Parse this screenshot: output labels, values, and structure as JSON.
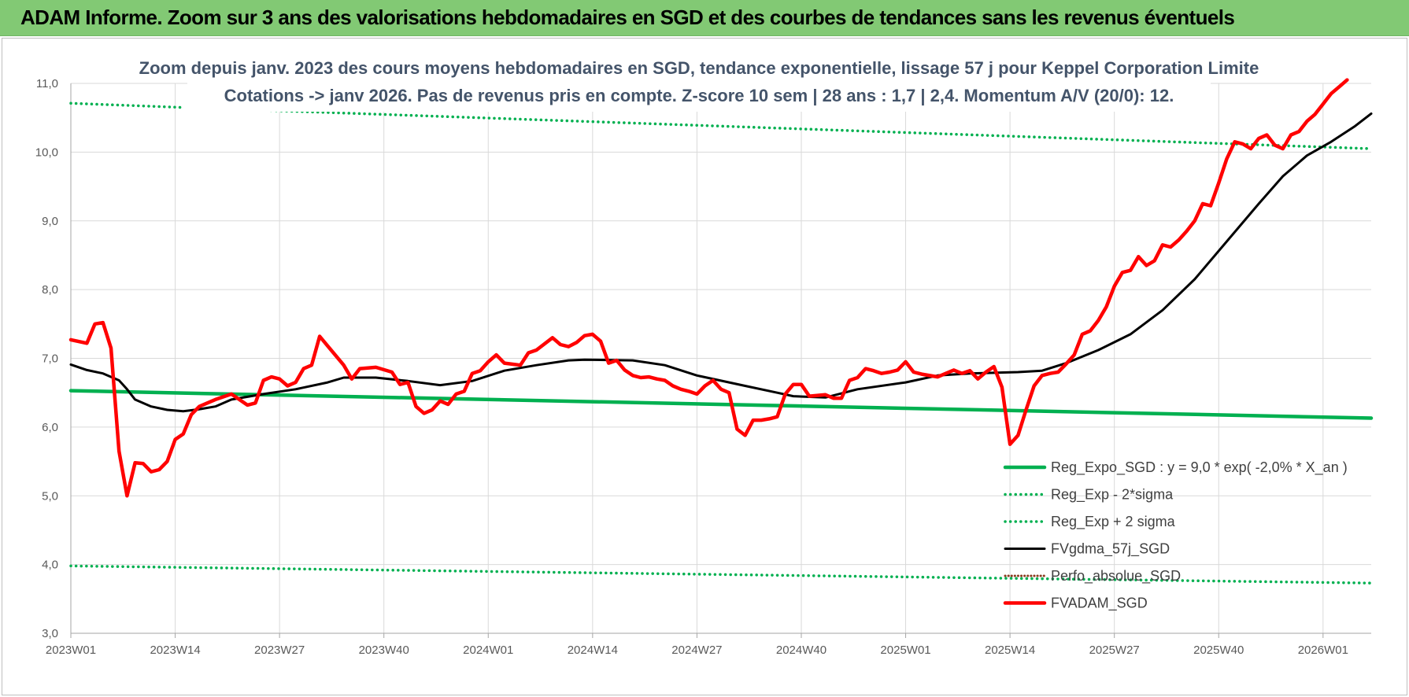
{
  "header": {
    "title": "ADAM Informe. Zoom sur 3 ans des valorisations hebdomadaires en SGD et des courbes de tendances sans les revenus éventuels"
  },
  "chart_data": {
    "type": "line",
    "title": "",
    "subtitle_lines": [
      "Zoom depuis janv. 2023 des cours moyens hebdomadaires en SGD, tendance exponentielle, lissage 57 j pour Keppel Corporation Limite",
      "Cotations -> janv 2026. Pas de revenus pris en compte. Z-score 10 sem | 28 ans : 1,7 | 2,4. Momentum A/V (20/0): 12."
    ],
    "xlabel": "",
    "ylabel": "",
    "ylim": [
      3,
      11
    ],
    "y_ticks": [
      "11,0",
      "10,0",
      "9,0",
      "8,0",
      "7,0",
      "6,0",
      "5,0",
      "4,0",
      "3,0"
    ],
    "x_tick_labels": [
      "2023W01",
      "2023W14",
      "2023W27",
      "2023W40",
      "2024W01",
      "2024W14",
      "2024W27",
      "2024W40",
      "2025W01",
      "2025W14",
      "2025W27",
      "2025W40",
      "2026W01"
    ],
    "x_tick_weeks": [
      0,
      13,
      26,
      39,
      52,
      65,
      78,
      91,
      104,
      117,
      130,
      143,
      156
    ],
    "week_count": 162,
    "grid": true,
    "legend_position": "bottom-right",
    "series": [
      {
        "name": "Reg_Expo_SGD : y = 9,0 * exp( -2,0% *  X_an )",
        "color": "#00b050",
        "style": "solid-thick",
        "points": [
          [
            0,
            6.53
          ],
          [
            162,
            6.13
          ]
        ]
      },
      {
        "name": "Reg_Exp - 2*sigma",
        "color": "#00b050",
        "style": "dotted",
        "points": [
          [
            0,
            3.98
          ],
          [
            162,
            3.73
          ]
        ]
      },
      {
        "name": "Reg_Exp + 2 sigma",
        "color": "#00b050",
        "style": "dotted",
        "points": [
          [
            0,
            10.71
          ],
          [
            14,
            10.65
          ],
          [
            162,
            10.05
          ]
        ],
        "gaps": [
          [
            14,
            23
          ]
        ]
      },
      {
        "name": "FVgdma_57j_SGD",
        "color": "#000000",
        "style": "solid",
        "points": [
          [
            0,
            6.91
          ],
          [
            2,
            6.83
          ],
          [
            4,
            6.78
          ],
          [
            6,
            6.68
          ],
          [
            7,
            6.55
          ],
          [
            8,
            6.4
          ],
          [
            10,
            6.3
          ],
          [
            12,
            6.25
          ],
          [
            14,
            6.23
          ],
          [
            16,
            6.26
          ],
          [
            18,
            6.3
          ],
          [
            20,
            6.4
          ],
          [
            24,
            6.48
          ],
          [
            28,
            6.55
          ],
          [
            32,
            6.65
          ],
          [
            34,
            6.72
          ],
          [
            38,
            6.72
          ],
          [
            42,
            6.67
          ],
          [
            46,
            6.61
          ],
          [
            50,
            6.67
          ],
          [
            54,
            6.82
          ],
          [
            58,
            6.9
          ],
          [
            62,
            6.97
          ],
          [
            64,
            6.98
          ],
          [
            70,
            6.97
          ],
          [
            74,
            6.9
          ],
          [
            78,
            6.75
          ],
          [
            84,
            6.6
          ],
          [
            88,
            6.5
          ],
          [
            90,
            6.45
          ],
          [
            94,
            6.43
          ],
          [
            98,
            6.55
          ],
          [
            104,
            6.65
          ],
          [
            108,
            6.75
          ],
          [
            112,
            6.78
          ],
          [
            118,
            6.8
          ],
          [
            121,
            6.82
          ],
          [
            124,
            6.93
          ],
          [
            128,
            7.12
          ],
          [
            132,
            7.35
          ],
          [
            136,
            7.7
          ],
          [
            140,
            8.15
          ],
          [
            144,
            8.7
          ],
          [
            148,
            9.25
          ],
          [
            151,
            9.65
          ],
          [
            154,
            9.95
          ],
          [
            157,
            10.15
          ],
          [
            160,
            10.38
          ],
          [
            162,
            10.56
          ]
        ]
      },
      {
        "name": "Perfo_absolue_SGD",
        "color": "#8b3a1e",
        "style": "dotted-thin",
        "points": []
      },
      {
        "name": "FVADAM_SGD",
        "color": "#ff0000",
        "style": "solid-thick",
        "points": [
          [
            0,
            7.27
          ],
          [
            2,
            7.22
          ],
          [
            3,
            7.5
          ],
          [
            4,
            7.52
          ],
          [
            5,
            7.15
          ],
          [
            6,
            5.65
          ],
          [
            7,
            5.0
          ],
          [
            8,
            5.48
          ],
          [
            9,
            5.47
          ],
          [
            10,
            5.35
          ],
          [
            11,
            5.38
          ],
          [
            12,
            5.5
          ],
          [
            13,
            5.82
          ],
          [
            14,
            5.9
          ],
          [
            15,
            6.18
          ],
          [
            16,
            6.3
          ],
          [
            18,
            6.4
          ],
          [
            20,
            6.48
          ],
          [
            22,
            6.32
          ],
          [
            23,
            6.35
          ],
          [
            24,
            6.68
          ],
          [
            25,
            6.73
          ],
          [
            26,
            6.7
          ],
          [
            27,
            6.6
          ],
          [
            28,
            6.65
          ],
          [
            29,
            6.85
          ],
          [
            30,
            6.9
          ],
          [
            31,
            7.32
          ],
          [
            32,
            7.18
          ],
          [
            34,
            6.9
          ],
          [
            35,
            6.7
          ],
          [
            36,
            6.85
          ],
          [
            38,
            6.87
          ],
          [
            40,
            6.8
          ],
          [
            41,
            6.62
          ],
          [
            42,
            6.65
          ],
          [
            43,
            6.3
          ],
          [
            44,
            6.2
          ],
          [
            45,
            6.25
          ],
          [
            46,
            6.38
          ],
          [
            47,
            6.33
          ],
          [
            48,
            6.48
          ],
          [
            49,
            6.52
          ],
          [
            50,
            6.78
          ],
          [
            51,
            6.82
          ],
          [
            52,
            6.95
          ],
          [
            53,
            7.05
          ],
          [
            54,
            6.93
          ],
          [
            56,
            6.9
          ],
          [
            57,
            7.08
          ],
          [
            58,
            7.12
          ],
          [
            60,
            7.3
          ],
          [
            61,
            7.2
          ],
          [
            62,
            7.17
          ],
          [
            63,
            7.23
          ],
          [
            64,
            7.33
          ],
          [
            65,
            7.35
          ],
          [
            66,
            7.25
          ],
          [
            67,
            6.93
          ],
          [
            68,
            6.97
          ],
          [
            69,
            6.83
          ],
          [
            70,
            6.75
          ],
          [
            71,
            6.72
          ],
          [
            72,
            6.73
          ],
          [
            73,
            6.7
          ],
          [
            74,
            6.68
          ],
          [
            75,
            6.6
          ],
          [
            76,
            6.55
          ],
          [
            77,
            6.52
          ],
          [
            78,
            6.48
          ],
          [
            79,
            6.6
          ],
          [
            80,
            6.68
          ],
          [
            81,
            6.55
          ],
          [
            82,
            6.5
          ],
          [
            83,
            5.97
          ],
          [
            84,
            5.88
          ],
          [
            85,
            6.1
          ],
          [
            86,
            6.1
          ],
          [
            87,
            6.12
          ],
          [
            88,
            6.15
          ],
          [
            89,
            6.48
          ],
          [
            90,
            6.62
          ],
          [
            91,
            6.62
          ],
          [
            92,
            6.45
          ],
          [
            94,
            6.47
          ],
          [
            95,
            6.42
          ],
          [
            96,
            6.42
          ],
          [
            97,
            6.68
          ],
          [
            98,
            6.72
          ],
          [
            99,
            6.85
          ],
          [
            100,
            6.82
          ],
          [
            101,
            6.78
          ],
          [
            102,
            6.8
          ],
          [
            103,
            6.83
          ],
          [
            104,
            6.95
          ],
          [
            105,
            6.8
          ],
          [
            106,
            6.77
          ],
          [
            108,
            6.73
          ],
          [
            109,
            6.78
          ],
          [
            110,
            6.83
          ],
          [
            111,
            6.78
          ],
          [
            112,
            6.82
          ],
          [
            113,
            6.7
          ],
          [
            114,
            6.8
          ],
          [
            115,
            6.88
          ],
          [
            116,
            6.58
          ],
          [
            117,
            5.75
          ],
          [
            118,
            5.88
          ],
          [
            119,
            6.25
          ],
          [
            120,
            6.6
          ],
          [
            121,
            6.75
          ],
          [
            122,
            6.78
          ],
          [
            123,
            6.8
          ],
          [
            124,
            6.92
          ],
          [
            125,
            7.05
          ],
          [
            126,
            7.35
          ],
          [
            127,
            7.4
          ],
          [
            128,
            7.55
          ],
          [
            129,
            7.75
          ],
          [
            130,
            8.05
          ],
          [
            131,
            8.25
          ],
          [
            132,
            8.28
          ],
          [
            133,
            8.48
          ],
          [
            134,
            8.35
          ],
          [
            135,
            8.42
          ],
          [
            136,
            8.65
          ],
          [
            137,
            8.62
          ],
          [
            138,
            8.72
          ],
          [
            139,
            8.85
          ],
          [
            140,
            9.0
          ],
          [
            141,
            9.25
          ],
          [
            142,
            9.22
          ],
          [
            143,
            9.55
          ],
          [
            144,
            9.9
          ],
          [
            145,
            10.15
          ],
          [
            146,
            10.12
          ],
          [
            147,
            10.05
          ],
          [
            148,
            10.2
          ],
          [
            149,
            10.25
          ],
          [
            150,
            10.1
          ],
          [
            151,
            10.05
          ],
          [
            152,
            10.25
          ],
          [
            153,
            10.3
          ],
          [
            154,
            10.45
          ],
          [
            155,
            10.55
          ],
          [
            156,
            10.7
          ],
          [
            157,
            10.85
          ],
          [
            158,
            10.95
          ],
          [
            159,
            11.05
          ]
        ]
      }
    ]
  }
}
